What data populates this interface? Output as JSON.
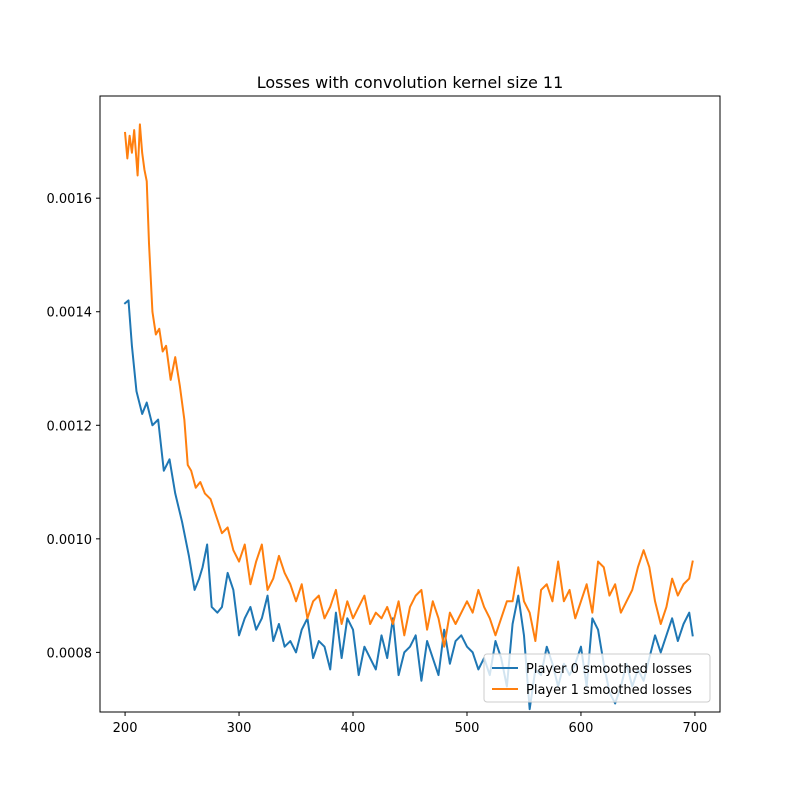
{
  "chart_data": {
    "type": "line",
    "title": "Losses with convolution kernel size 11",
    "xlabel": "",
    "ylabel": "",
    "xlim": [
      178,
      722
    ],
    "ylim": [
      0.000695,
      0.00178
    ],
    "xticks": [
      {
        "value": 200,
        "label": "200"
      },
      {
        "value": 300,
        "label": "300"
      },
      {
        "value": 400,
        "label": "400"
      },
      {
        "value": 500,
        "label": "500"
      },
      {
        "value": 600,
        "label": "600"
      },
      {
        "value": 700,
        "label": "700"
      }
    ],
    "yticks": [
      {
        "value": 0.0008,
        "label": "0.0008"
      },
      {
        "value": 0.001,
        "label": "0.0010"
      },
      {
        "value": 0.0012,
        "label": "0.0012"
      },
      {
        "value": 0.0014,
        "label": "0.0014"
      },
      {
        "value": 0.0016,
        "label": "0.0016"
      }
    ],
    "grid": false,
    "legend_position": "lower-right",
    "series": [
      {
        "name": "Player 0 smoothed losses",
        "color": "#1f77b4",
        "x": [
          200,
          203,
          206,
          210,
          215,
          219,
          224,
          229,
          234,
          239,
          244,
          250,
          256,
          261,
          265,
          268,
          272,
          276,
          281,
          285,
          290,
          295,
          300,
          305,
          310,
          315,
          320,
          325,
          330,
          335,
          340,
          345,
          350,
          355,
          360,
          365,
          370,
          375,
          380,
          385,
          390,
          395,
          400,
          405,
          410,
          415,
          420,
          425,
          430,
          435,
          440,
          445,
          450,
          455,
          460,
          465,
          470,
          475,
          480,
          485,
          490,
          495,
          500,
          505,
          510,
          515,
          520,
          525,
          530,
          535,
          540,
          545,
          550,
          555,
          560,
          565,
          570,
          575,
          580,
          585,
          590,
          595,
          600,
          605,
          610,
          615,
          620,
          625,
          630,
          635,
          640,
          645,
          650,
          655,
          660,
          665,
          670,
          675,
          680,
          685,
          690,
          695,
          698
        ],
        "y": [
          0.001415,
          0.00142,
          0.00134,
          0.00126,
          0.00122,
          0.00124,
          0.0012,
          0.00121,
          0.00112,
          0.00114,
          0.00108,
          0.00103,
          0.00097,
          0.00091,
          0.00093,
          0.00095,
          0.00099,
          0.00088,
          0.00087,
          0.00088,
          0.00094,
          0.00091,
          0.00083,
          0.00086,
          0.00088,
          0.00084,
          0.00086,
          0.0009,
          0.00082,
          0.00085,
          0.00081,
          0.00082,
          0.0008,
          0.00084,
          0.00086,
          0.00079,
          0.00082,
          0.00081,
          0.00077,
          0.00087,
          0.00079,
          0.00086,
          0.00084,
          0.00076,
          0.00081,
          0.00079,
          0.00077,
          0.00083,
          0.00079,
          0.00086,
          0.00076,
          0.0008,
          0.00081,
          0.00083,
          0.00075,
          0.00082,
          0.00079,
          0.00076,
          0.00084,
          0.00078,
          0.00082,
          0.00083,
          0.00081,
          0.0008,
          0.00077,
          0.00079,
          0.00076,
          0.00082,
          0.00079,
          0.00074,
          0.00085,
          0.0009,
          0.00083,
          0.0007,
          0.00077,
          0.00076,
          0.00081,
          0.00078,
          0.00074,
          0.00078,
          0.00076,
          0.00078,
          0.00081,
          0.00074,
          0.00086,
          0.00084,
          0.00078,
          0.00073,
          0.00071,
          0.00074,
          0.00078,
          0.00074,
          0.00077,
          0.00075,
          0.00079,
          0.00083,
          0.0008,
          0.00083,
          0.00086,
          0.00082,
          0.00085,
          0.00087,
          0.00083
        ]
      },
      {
        "name": "Player 1 smoothed losses",
        "color": "#ff7f0e",
        "x": [
          200,
          202,
          204,
          206,
          208,
          211,
          213,
          215,
          217,
          219,
          221,
          224,
          227,
          230,
          233,
          236,
          240,
          244,
          248,
          252,
          255,
          258,
          262,
          266,
          270,
          275,
          280,
          285,
          290,
          295,
          300,
          305,
          310,
          315,
          320,
          325,
          330,
          335,
          340,
          345,
          350,
          355,
          360,
          365,
          370,
          375,
          380,
          385,
          390,
          395,
          400,
          405,
          410,
          415,
          420,
          425,
          430,
          435,
          440,
          445,
          450,
          455,
          460,
          465,
          470,
          475,
          480,
          485,
          490,
          495,
          500,
          505,
          510,
          515,
          520,
          525,
          530,
          535,
          540,
          545,
          550,
          555,
          560,
          565,
          570,
          575,
          580,
          585,
          590,
          595,
          600,
          605,
          610,
          615,
          620,
          625,
          630,
          635,
          640,
          645,
          650,
          655,
          660,
          665,
          670,
          675,
          680,
          685,
          690,
          695,
          698
        ],
        "y": [
          0.001715,
          0.00167,
          0.00171,
          0.00168,
          0.00172,
          0.00164,
          0.00173,
          0.00168,
          0.00165,
          0.00163,
          0.00152,
          0.0014,
          0.00136,
          0.00137,
          0.00133,
          0.00134,
          0.00128,
          0.00132,
          0.00127,
          0.00121,
          0.00113,
          0.00112,
          0.00109,
          0.0011,
          0.00108,
          0.00107,
          0.00104,
          0.00101,
          0.00102,
          0.00098,
          0.00096,
          0.00099,
          0.00092,
          0.00096,
          0.00099,
          0.00091,
          0.00093,
          0.00097,
          0.00094,
          0.00092,
          0.00089,
          0.00092,
          0.00086,
          0.00089,
          0.0009,
          0.00086,
          0.00088,
          0.00091,
          0.00085,
          0.00089,
          0.00086,
          0.00088,
          0.0009,
          0.00085,
          0.00087,
          0.00086,
          0.00088,
          0.00085,
          0.00089,
          0.00083,
          0.00088,
          0.0009,
          0.00091,
          0.00084,
          0.00089,
          0.00086,
          0.00081,
          0.00087,
          0.00085,
          0.00087,
          0.00089,
          0.00087,
          0.00091,
          0.00088,
          0.00086,
          0.00083,
          0.00086,
          0.00089,
          0.00089,
          0.00095,
          0.00089,
          0.00087,
          0.00082,
          0.00091,
          0.00092,
          0.00089,
          0.00096,
          0.00089,
          0.00091,
          0.00086,
          0.00089,
          0.00092,
          0.00087,
          0.00096,
          0.00095,
          0.0009,
          0.00092,
          0.00087,
          0.00089,
          0.00091,
          0.00095,
          0.00098,
          0.00095,
          0.00089,
          0.00085,
          0.00088,
          0.00093,
          0.0009,
          0.00092,
          0.00093,
          0.00096
        ]
      }
    ]
  }
}
